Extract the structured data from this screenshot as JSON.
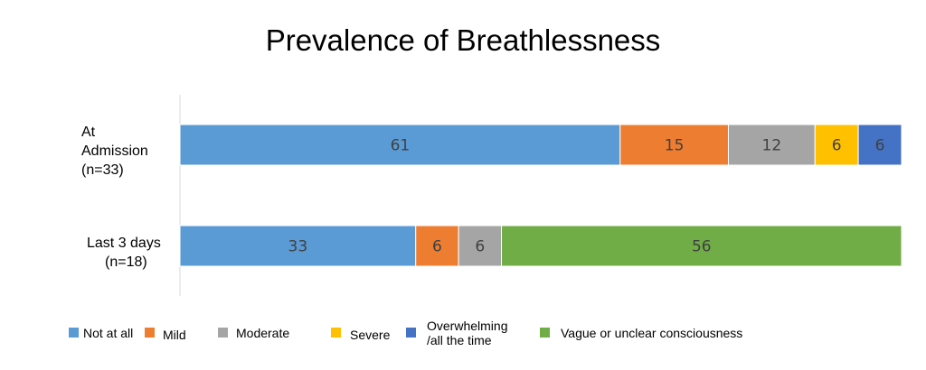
{
  "chart_data": {
    "type": "bar",
    "orientation": "horizontal",
    "stacked": true,
    "title": "Prevalence of Breathlessness",
    "categories": [
      {
        "line1": "At",
        "line2": "Admission",
        "line3": "(n=33)"
      },
      {
        "line1": "Last 3 days",
        "line2": "(n=18)"
      }
    ],
    "series": [
      {
        "name": "Not at all",
        "color": "#5B9BD5",
        "values": [
          61,
          33
        ]
      },
      {
        "name": "Mild",
        "color": "#ED7D31",
        "values": [
          15,
          6
        ]
      },
      {
        "name": "Moderate",
        "color": "#A5A5A5",
        "values": [
          12,
          6
        ]
      },
      {
        "name": "Severe",
        "color": "#FFC000",
        "values": [
          6,
          0
        ]
      },
      {
        "name": "Overwhelming /all the time",
        "name_line1": "Overwhelming",
        "name_line2": "/all the time",
        "color": "#4472C4",
        "values": [
          6,
          0
        ]
      },
      {
        "name": "Vague or unclear consciousness",
        "color": "#70AD47",
        "values": [
          0,
          56
        ]
      }
    ],
    "legend_position": "bottom",
    "grid": false
  }
}
